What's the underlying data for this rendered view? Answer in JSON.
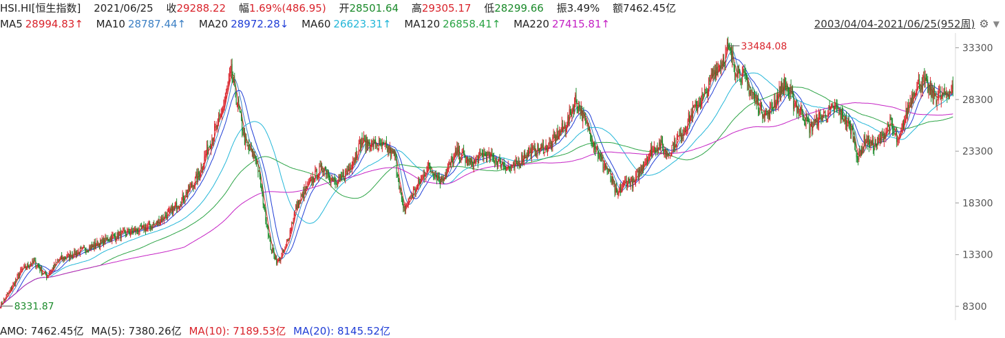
{
  "quote": {
    "symbol": "HSI.HI[恒生指数]",
    "date": "2021/06/25",
    "close_label": "收",
    "close": "29288.22",
    "change_label": "幅",
    "change": "1.69%(486.95)",
    "open_label": "开",
    "open": "28501.64",
    "high_label": "高",
    "high": "29305.17",
    "low_label": "低",
    "low": "28299.66",
    "amplitude_label": "振",
    "amplitude": "3.49%",
    "amount_label": "额",
    "amount": "7462.45亿"
  },
  "ma_legend": [
    {
      "name": "MA5",
      "value": "28994.83↑",
      "color": "#d9232b"
    },
    {
      "name": "MA10",
      "value": "28787.44↑",
      "color": "#3b7fc4"
    },
    {
      "name": "MA20",
      "value": "28972.28↓",
      "color": "#1e3cd6"
    },
    {
      "name": "MA60",
      "value": "26623.31↑",
      "color": "#22b6d8"
    },
    {
      "name": "MA120",
      "value": "26858.41↑",
      "color": "#2aa344"
    },
    {
      "name": "MA220",
      "value": "27415.81↑",
      "color": "#c420c4"
    }
  ],
  "range": {
    "text": "2003/04/04-2021/06/25(952周)",
    "icon": "gear-icon"
  },
  "bottom_bar": [
    {
      "label": "AMO: 7462.45亿",
      "color": "#222222"
    },
    {
      "label": "MA(5): 7380.26亿",
      "color": "#222222"
    },
    {
      "label": "MA(10): 7189.53亿",
      "color": "#d9232b"
    },
    {
      "label": "MA(20): 8145.52亿",
      "color": "#1e3cd6"
    }
  ],
  "chart_data": {
    "type": "candlestick",
    "period": "weekly",
    "x_range": [
      "2003/04/04",
      "2021/06/25"
    ],
    "ylim": [
      7500,
      34200
    ],
    "yticks": [
      8300,
      13300,
      18300,
      23300,
      28300,
      33300
    ],
    "annotations": [
      {
        "text": "33484.08",
        "value": 33484.08,
        "kind": "max",
        "color": "#d9232b"
      },
      {
        "text": "8331.87",
        "value": 8331.87,
        "kind": "min",
        "color": "#1a8a2a"
      }
    ],
    "colors": {
      "up": "#d9232b",
      "down": "#1a8a2a"
    },
    "trend_anchors": [
      [
        0,
        8400
      ],
      [
        10,
        9600
      ],
      [
        25,
        11800
      ],
      [
        40,
        12600
      ],
      [
        55,
        11200
      ],
      [
        70,
        12800
      ],
      [
        100,
        13800
      ],
      [
        140,
        15200
      ],
      [
        180,
        16000
      ],
      [
        200,
        17200
      ],
      [
        215,
        18500
      ],
      [
        235,
        20800
      ],
      [
        250,
        24200
      ],
      [
        262,
        26500
      ],
      [
        275,
        30800
      ],
      [
        282,
        28000
      ],
      [
        292,
        24000
      ],
      [
        305,
        22500
      ],
      [
        316,
        17000
      ],
      [
        322,
        14000
      ],
      [
        330,
        12500
      ],
      [
        340,
        14000
      ],
      [
        352,
        17800
      ],
      [
        370,
        20500
      ],
      [
        385,
        21800
      ],
      [
        400,
        20000
      ],
      [
        415,
        21600
      ],
      [
        430,
        24200
      ],
      [
        445,
        24000
      ],
      [
        460,
        23600
      ],
      [
        470,
        22800
      ],
      [
        480,
        17500
      ],
      [
        490,
        19000
      ],
      [
        510,
        21800
      ],
      [
        525,
        20500
      ],
      [
        545,
        23300
      ],
      [
        560,
        22000
      ],
      [
        575,
        23000
      ],
      [
        590,
        22500
      ],
      [
        610,
        21500
      ],
      [
        625,
        23000
      ],
      [
        640,
        23500
      ],
      [
        655,
        23800
      ],
      [
        665,
        25000
      ],
      [
        675,
        26000
      ],
      [
        685,
        28300
      ],
      [
        695,
        26500
      ],
      [
        705,
        24500
      ],
      [
        715,
        22500
      ],
      [
        725,
        21200
      ],
      [
        735,
        18900
      ],
      [
        745,
        20500
      ],
      [
        755,
        20200
      ],
      [
        765,
        22000
      ],
      [
        775,
        23200
      ],
      [
        785,
        24000
      ],
      [
        795,
        23000
      ],
      [
        810,
        24800
      ],
      [
        825,
        27200
      ],
      [
        840,
        28800
      ],
      [
        850,
        31000
      ],
      [
        860,
        32000
      ],
      [
        866,
        33300
      ],
      [
        875,
        31500
      ],
      [
        885,
        30500
      ],
      [
        895,
        29000
      ],
      [
        905,
        27500
      ],
      [
        915,
        26800
      ],
      [
        925,
        28500
      ],
      [
        935,
        29800
      ],
      [
        945,
        28000
      ],
      [
        955,
        27000
      ],
      [
        965,
        25500
      ],
      [
        975,
        26500
      ],
      [
        985,
        27000
      ],
      [
        995,
        27500
      ],
      [
        1005,
        26500
      ],
      [
        1015,
        25200
      ],
      [
        1022,
        22500
      ],
      [
        1030,
        24500
      ],
      [
        1040,
        23800
      ],
      [
        1050,
        24500
      ],
      [
        1060,
        26000
      ],
      [
        1070,
        24000
      ],
      [
        1080,
        27200
      ],
      [
        1090,
        29500
      ],
      [
        1100,
        30000
      ],
      [
        1110,
        28800
      ],
      [
        1120,
        28500
      ],
      [
        1130,
        29000
      ],
      [
        1135,
        29288
      ]
    ]
  }
}
